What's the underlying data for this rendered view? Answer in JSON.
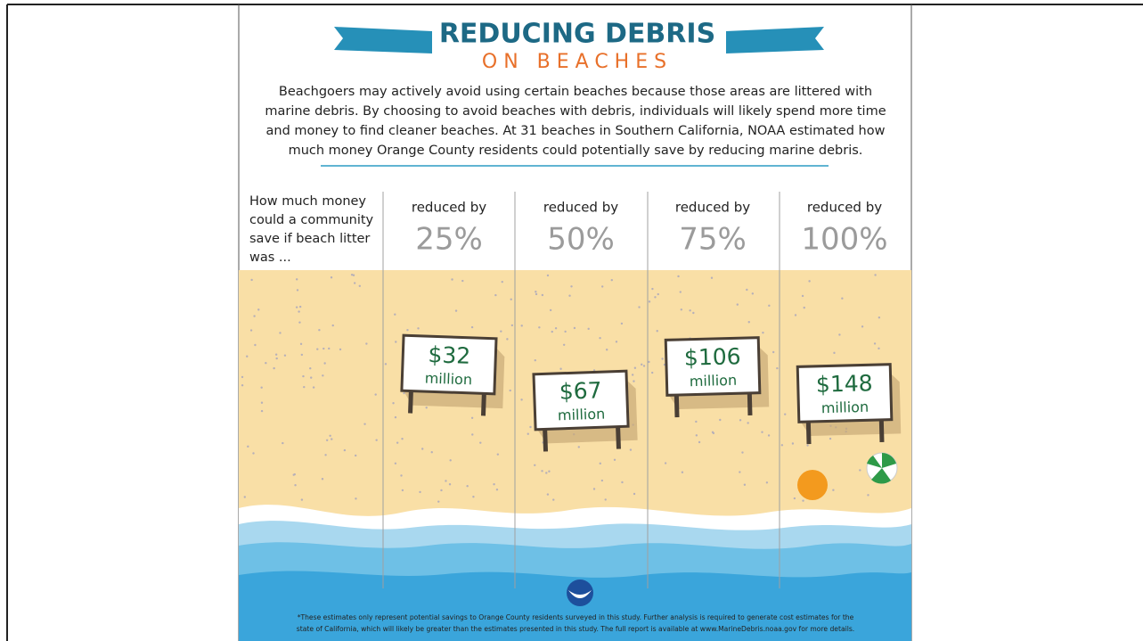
{
  "header": {
    "title": "REDUCING DEBRIS",
    "subtitle": "ON BEACHES"
  },
  "intro": {
    "lines": [
      "Beachgoers may actively avoid using certain beaches because those areas are littered with",
      "marine debris. By choosing to avoid beaches with debris, individuals will likely spend more time",
      "and money to find cleaner beaches. At 31 beaches in Southern California, NOAA estimated how",
      "much money Orange County residents could potentially save by reducing marine debris."
    ]
  },
  "question": {
    "lines": [
      "How much money",
      "could a community",
      "save if beach litter",
      "was ..."
    ]
  },
  "columns": [
    {
      "label": "reduced by",
      "percent": "25%",
      "amount": "$32",
      "unit": "million"
    },
    {
      "label": "reduced by",
      "percent": "50%",
      "amount": "$67",
      "unit": "million"
    },
    {
      "label": "reduced by",
      "percent": "75%",
      "amount": "$106",
      "unit": "million"
    },
    {
      "label": "reduced by",
      "percent": "100%",
      "amount": "$148",
      "unit": "million"
    }
  ],
  "footnote": {
    "lines": [
      "*These estimates only represent potential savings to Orange County residents surveyed in this study. Further analysis is required to generate cost estimates for the",
      "state of California, which will likely be greater than the estimates presented in this study. The full report is available at www.MarineDebris.noaa.gov for more details."
    ]
  }
}
